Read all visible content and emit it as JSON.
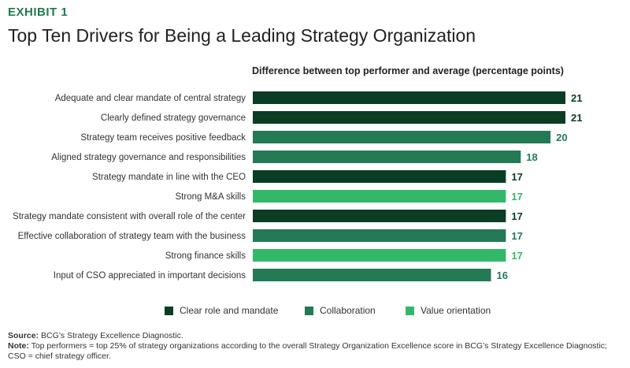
{
  "exhibit_label": "EXHIBIT 1",
  "chart_data": {
    "type": "bar",
    "orientation": "horizontal",
    "title": "Top Ten Drivers for Being a Leading Strategy Organization",
    "subtitle": "Difference between top performer and average (percentage points)",
    "categories": [
      "Adequate and clear mandate of central strategy",
      "Clearly defined strategy governance",
      "Strategy team receives positive feedback",
      "Aligned strategy governance and responsibilities",
      "Strategy mandate in line with the CEO",
      "Strong M&A skills",
      "Strategy mandate consistent with overall role of the center",
      "Effective collaboration of strategy team with the business",
      "Strong finance skills",
      "Input of CSO appreciated in important decisions"
    ],
    "values": [
      21,
      21,
      20,
      18,
      17,
      17,
      17,
      17,
      17,
      16
    ],
    "groups": [
      "Clear role and mandate",
      "Clear role and mandate",
      "Collaboration",
      "Collaboration",
      "Clear role and mandate",
      "Value orientation",
      "Clear role and mandate",
      "Collaboration",
      "Value orientation",
      "Collaboration"
    ],
    "legend": [
      {
        "name": "Clear role and mandate",
        "color": "#0b3d24",
        "label_color": "#0b3d24"
      },
      {
        "name": "Collaboration",
        "color": "#237a55",
        "label_color": "#237a55"
      },
      {
        "name": "Value orientation",
        "color": "#33b86a",
        "label_color": "#33b86a"
      }
    ],
    "legend_position": "bottom",
    "xlim": [
      0,
      21
    ],
    "grid": false
  },
  "source": {
    "label": "Source:",
    "text": "BCG’s Strategy Excellence Diagnostic."
  },
  "note": {
    "label": "Note:",
    "text": "Top performers = top 25% of strategy organizations according to the overall Strategy Organization Excellence score in BCG’s Strategy Excellence Diagnostic; CSO = chief strategy officer."
  }
}
